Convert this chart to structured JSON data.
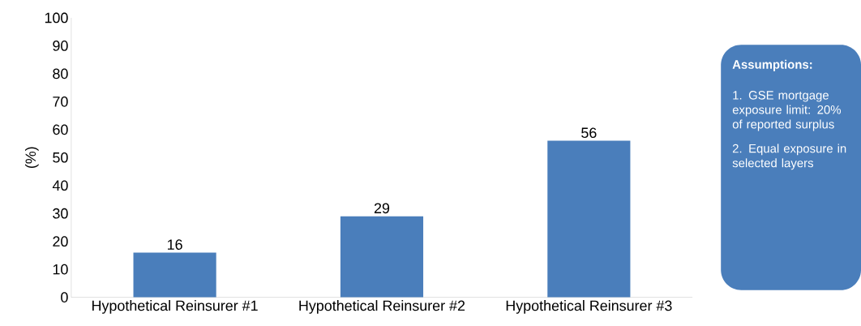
{
  "chart_data": {
    "type": "bar",
    "ylabel": "(%)",
    "categories": [
      "Hypothetical Reinsurer #1",
      "Hypothetical Reinsurer #2",
      "Hypothetical Reinsurer #3"
    ],
    "values": [
      16,
      29,
      56
    ],
    "color": "#4a7ebb",
    "ylim": [
      0,
      100
    ],
    "yticks": [
      0,
      10,
      20,
      30,
      40,
      50,
      60,
      70,
      80,
      90,
      100
    ],
    "data_labels": true,
    "annotations": [
      "Assumptions:",
      "1. GSE mortgage exposure limit: 20% of reported surplus",
      "2. Equal exposure in selected layers"
    ]
  }
}
